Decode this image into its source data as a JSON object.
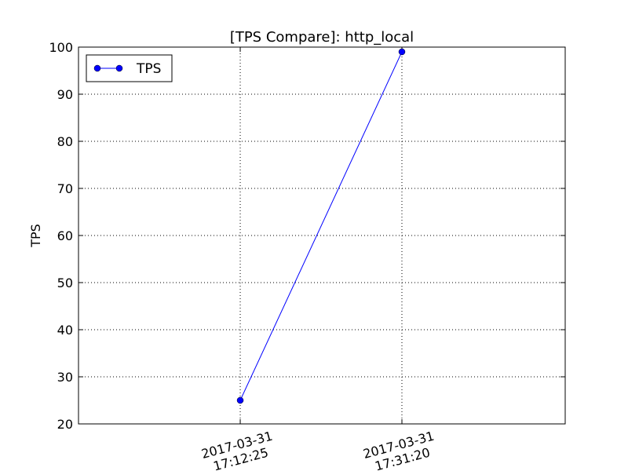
{
  "chart_data": {
    "type": "line",
    "title": "[TPS Compare]: http_local",
    "xlabel": "",
    "ylabel": "TPS",
    "x_ticks": [
      {
        "line1": "2017-03-31",
        "line2": "17:12:25"
      },
      {
        "line1": "2017-03-31",
        "line2": "17:31:20"
      }
    ],
    "x": [
      "2017-03-31 17:12:25",
      "2017-03-31 17:31:20"
    ],
    "series": [
      {
        "name": "TPS",
        "values": [
          25,
          99
        ],
        "color": "#0000ff"
      }
    ],
    "ylim": [
      20,
      100
    ],
    "yticks": [
      20,
      30,
      40,
      50,
      60,
      70,
      80,
      90,
      100
    ],
    "grid": true,
    "legend": "top-left"
  }
}
